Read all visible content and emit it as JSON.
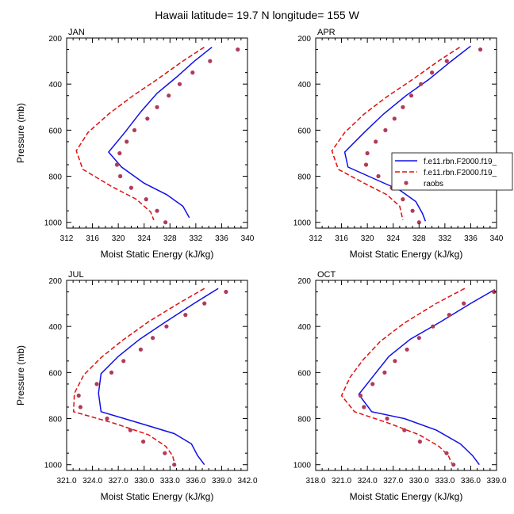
{
  "figure": {
    "title": "Hawaii  latitude= 19.7 N longitude= 155 W"
  },
  "legend": {
    "entries": [
      {
        "label": "f.e11.rbn.F2000.f19_",
        "style": "solid",
        "color": "#1010e8"
      },
      {
        "label": "f.e11.rbn.F2000.f19_",
        "style": "dashed",
        "color": "#e01010"
      },
      {
        "label": "raobs",
        "style": "dot",
        "color": "#b03a5a"
      }
    ]
  },
  "chart_data": [
    {
      "type": "line",
      "panel": "JAN",
      "xlabel": "Moist Static Energy (kJ/kg)",
      "ylabel": "Pressure (mb)",
      "xlim": [
        312,
        340
      ],
      "ylim": [
        1025,
        200
      ],
      "xticks": [
        312,
        316,
        320,
        324,
        328,
        332,
        336,
        340
      ],
      "xtick_labels": [
        "312",
        "316",
        "320",
        "324",
        "328",
        "332",
        "336",
        "340"
      ],
      "yticks": [
        200,
        400,
        600,
        800,
        1000
      ],
      "yaxis_inverted": true,
      "series": [
        {
          "style": "solid",
          "color": "#1010e8",
          "points": [
            [
              334.5,
              240
            ],
            [
              331.8,
              300
            ],
            [
              329,
              370
            ],
            [
              326,
              440
            ],
            [
              323.5,
              520
            ],
            [
              321,
              610
            ],
            [
              318.5,
              695
            ],
            [
              320.5,
              760
            ],
            [
              324,
              830
            ],
            [
              327.5,
              880
            ],
            [
              330,
              930
            ],
            [
              331,
              980
            ]
          ]
        },
        {
          "style": "dashed",
          "color": "#e01010",
          "points": [
            [
              333.3,
              240
            ],
            [
              330,
              300
            ],
            [
              326,
              380
            ],
            [
              322.3,
              450
            ],
            [
              318.5,
              530
            ],
            [
              315.3,
              610
            ],
            [
              313.5,
              690
            ],
            [
              314.5,
              770
            ],
            [
              319,
              845
            ],
            [
              322.8,
              900
            ],
            [
              325,
              955
            ],
            [
              325.5,
              990
            ]
          ]
        },
        {
          "style": "dot",
          "color": "#b03a5a",
          "points": [
            [
              338.5,
              250
            ],
            [
              334.2,
              300
            ],
            [
              331.5,
              350
            ],
            [
              329.5,
              400
            ],
            [
              327.8,
              450
            ],
            [
              326,
              500
            ],
            [
              324.5,
              550
            ],
            [
              322.5,
              600
            ],
            [
              321.3,
              650
            ],
            [
              320.2,
              700
            ],
            [
              319.8,
              750
            ],
            [
              320.3,
              800
            ],
            [
              322,
              850
            ],
            [
              324.3,
              900
            ],
            [
              326,
              950
            ],
            [
              327.3,
              1000
            ]
          ]
        }
      ]
    },
    {
      "type": "line",
      "panel": "APR",
      "xlabel": "Moist Static Energy (kJ/kg)",
      "ylabel": "",
      "xlim": [
        312,
        340
      ],
      "ylim": [
        1025,
        200
      ],
      "xticks": [
        312,
        316,
        320,
        324,
        328,
        332,
        336,
        340
      ],
      "xtick_labels": [
        "312",
        "316",
        "320",
        "324",
        "328",
        "332",
        "336",
        "340"
      ],
      "yticks": [
        200,
        400,
        600,
        800,
        1000
      ],
      "yaxis_inverted": true,
      "series": [
        {
          "style": "solid",
          "color": "#1010e8",
          "points": [
            [
              336,
              235
            ],
            [
              333,
              300
            ],
            [
              329.5,
              380
            ],
            [
              326,
              450
            ],
            [
              322.5,
              530
            ],
            [
              319.5,
              610
            ],
            [
              316.5,
              695
            ],
            [
              317,
              760
            ],
            [
              321,
              810
            ],
            [
              325,
              860
            ],
            [
              327.5,
              910
            ],
            [
              328.5,
              960
            ],
            [
              329,
              995
            ]
          ]
        },
        {
          "style": "dashed",
          "color": "#e01010",
          "points": [
            [
              334.3,
              240
            ],
            [
              331,
              300
            ],
            [
              327,
              380
            ],
            [
              323,
              455
            ],
            [
              319.5,
              530
            ],
            [
              316.5,
              610
            ],
            [
              314.5,
              690
            ],
            [
              315.5,
              770
            ],
            [
              319.5,
              830
            ],
            [
              323,
              880
            ],
            [
              325,
              930
            ],
            [
              325.5,
              990
            ]
          ]
        },
        {
          "style": "dot",
          "color": "#b03a5a",
          "points": [
            [
              337.5,
              250
            ],
            [
              332.3,
              300
            ],
            [
              330,
              350
            ],
            [
              328.3,
              400
            ],
            [
              326.8,
              450
            ],
            [
              325.5,
              500
            ],
            [
              324.2,
              550
            ],
            [
              322.8,
              600
            ],
            [
              321.3,
              650
            ],
            [
              320,
              700
            ],
            [
              319.8,
              750
            ],
            [
              321.7,
              800
            ],
            [
              323.8,
              850
            ],
            [
              325.5,
              900
            ],
            [
              327,
              950
            ],
            [
              328,
              1000
            ]
          ]
        }
      ]
    },
    {
      "type": "line",
      "panel": "JUL",
      "xlabel": "Moist Static Energy (kJ/kg)",
      "ylabel": "Pressure (mb)",
      "xlim": [
        321,
        342
      ],
      "ylim": [
        1025,
        200
      ],
      "xticks": [
        321,
        324,
        327,
        330,
        333,
        336,
        339,
        342
      ],
      "xtick_labels": [
        "321.0",
        "324.0",
        "327.0",
        "330.0",
        "333.0",
        "336.0",
        "339.0",
        "342.0"
      ],
      "yticks": [
        200,
        400,
        600,
        800,
        1000
      ],
      "yaxis_inverted": true,
      "series": [
        {
          "style": "solid",
          "color": "#1010e8",
          "points": [
            [
              338.6,
              235
            ],
            [
              335.8,
              300
            ],
            [
              332.5,
              380
            ],
            [
              329.5,
              455
            ],
            [
              327,
              530
            ],
            [
              325,
              605
            ],
            [
              324.7,
              690
            ],
            [
              325,
              770
            ],
            [
              329.5,
              820
            ],
            [
              333.5,
              865
            ],
            [
              335.5,
              910
            ],
            [
              336.2,
              960
            ],
            [
              337,
              1000
            ]
          ]
        },
        {
          "style": "dashed",
          "color": "#e01010",
          "points": [
            [
              337,
              235
            ],
            [
              334,
              300
            ],
            [
              330.5,
              380
            ],
            [
              327.5,
              460
            ],
            [
              325,
              535
            ],
            [
              323,
              610
            ],
            [
              321.9,
              690
            ],
            [
              321.8,
              770
            ],
            [
              326.5,
              820
            ],
            [
              330.5,
              870
            ],
            [
              332.5,
              920
            ],
            [
              333.3,
              960
            ],
            [
              333.5,
              990
            ]
          ]
        },
        {
          "style": "dot",
          "color": "#b03a5a",
          "points": [
            [
              339.5,
              250
            ],
            [
              337,
              300
            ],
            [
              334.8,
              350
            ],
            [
              332.6,
              400
            ],
            [
              331,
              450
            ],
            [
              329.6,
              500
            ],
            [
              327.6,
              550
            ],
            [
              326.2,
              600
            ],
            [
              324.5,
              650
            ],
            [
              322.4,
              700
            ],
            [
              322.6,
              750
            ],
            [
              325.7,
              800
            ],
            [
              328.4,
              850
            ],
            [
              329.9,
              900
            ],
            [
              332.4,
              950
            ],
            [
              333.5,
              1000
            ]
          ]
        }
      ]
    },
    {
      "type": "line",
      "panel": "OCT",
      "xlabel": "Moist Static Energy (kJ/kg)",
      "ylabel": "",
      "xlim": [
        318,
        339
      ],
      "ylim": [
        1025,
        200
      ],
      "xticks": [
        318,
        321,
        324,
        327,
        330,
        333,
        336,
        339
      ],
      "xtick_labels": [
        "318.0",
        "321.0",
        "324.0",
        "327.0",
        "330.0",
        "333.0",
        "336.0",
        "339.0"
      ],
      "yticks": [
        200,
        400,
        600,
        800,
        1000
      ],
      "yaxis_inverted": true,
      "series": [
        {
          "style": "solid",
          "color": "#1010e8",
          "points": [
            [
              338.8,
              240
            ],
            [
              336,
              300
            ],
            [
              332.5,
              380
            ],
            [
              329,
              455
            ],
            [
              326.5,
              530
            ],
            [
              324.8,
              610
            ],
            [
              323,
              695
            ],
            [
              324.5,
              770
            ],
            [
              328.3,
              800
            ],
            [
              332,
              850
            ],
            [
              334.8,
              910
            ],
            [
              336.2,
              960
            ],
            [
              337,
              1000
            ]
          ]
        },
        {
          "style": "dashed",
          "color": "#e01010",
          "points": [
            [
              335.3,
              235
            ],
            [
              332,
              300
            ],
            [
              328.3,
              385
            ],
            [
              325.5,
              465
            ],
            [
              323.5,
              545
            ],
            [
              322,
              620
            ],
            [
              321,
              700
            ],
            [
              322.5,
              770
            ],
            [
              326.5,
              820
            ],
            [
              330,
              870
            ],
            [
              332.3,
              920
            ],
            [
              333.4,
              960
            ],
            [
              333.8,
              995
            ]
          ]
        },
        {
          "style": "dot",
          "color": "#b03a5a",
          "points": [
            [
              338.7,
              250
            ],
            [
              335.2,
              300
            ],
            [
              333.5,
              350
            ],
            [
              331.6,
              400
            ],
            [
              330,
              450
            ],
            [
              328.6,
              500
            ],
            [
              327.2,
              550
            ],
            [
              326,
              600
            ],
            [
              324.6,
              650
            ],
            [
              323.2,
              700
            ],
            [
              323.6,
              750
            ],
            [
              326.3,
              800
            ],
            [
              328.3,
              850
            ],
            [
              330.1,
              900
            ],
            [
              333.2,
              950
            ],
            [
              334,
              1000
            ]
          ]
        }
      ]
    }
  ]
}
